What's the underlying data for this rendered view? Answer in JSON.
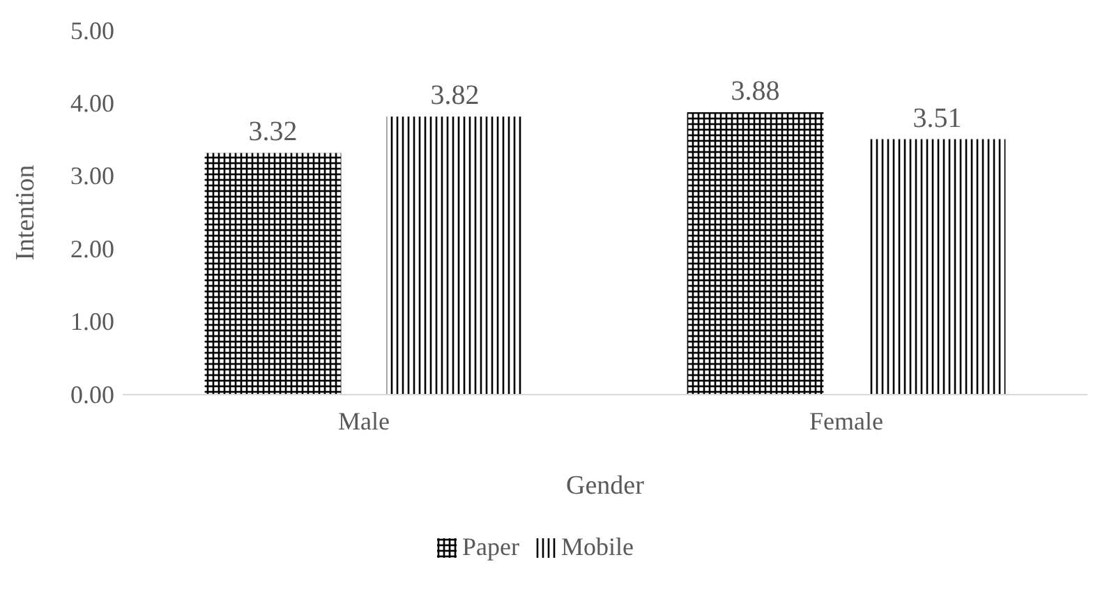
{
  "chart_data": {
    "type": "bar",
    "xlabel": "Gender",
    "ylabel": "Intention",
    "categories": [
      "Male",
      "Female"
    ],
    "series": [
      {
        "name": "Paper",
        "color": "#000000",
        "values": [
          3.32,
          3.88
        ]
      },
      {
        "name": "Mobile",
        "color": "#000000",
        "values": [
          3.82,
          3.51
        ]
      }
    ],
    "ylim": [
      0,
      5
    ],
    "yticks": [
      {
        "value": 0,
        "label": "0.00"
      },
      {
        "value": 1,
        "label": "1.00"
      },
      {
        "value": 2,
        "label": "2.00"
      },
      {
        "value": 3,
        "label": "3.00"
      },
      {
        "value": 4,
        "label": "4.00"
      },
      {
        "value": 5,
        "label": "5.00"
      }
    ],
    "data_labels": true,
    "legend": "bottom",
    "grid": false
  }
}
